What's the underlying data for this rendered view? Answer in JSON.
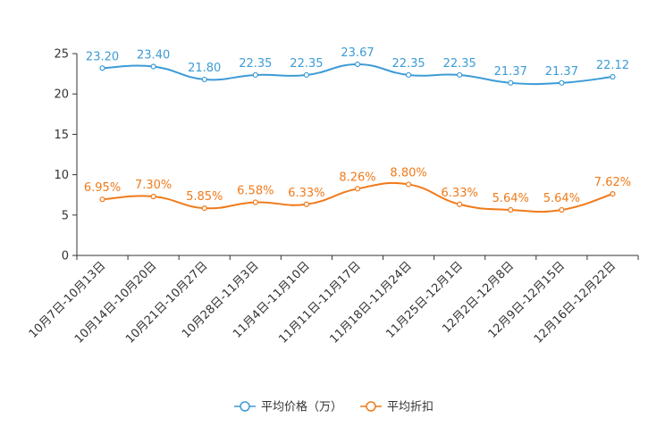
{
  "chart_data": {
    "type": "line",
    "title": "",
    "xlabel": "",
    "ylabel": "",
    "ylim": [
      0,
      25
    ],
    "yticks": [
      0,
      5,
      10,
      15,
      20,
      25
    ],
    "categories": [
      "10月7日-10月13日",
      "10月14日-10月20日",
      "10月21日-10月27日",
      "10月28日-11月3日",
      "11月4日-11月10日",
      "11月11日-11月17日",
      "11月18日-11月24日",
      "11月25日-12月1日",
      "12月2日-12月8日",
      "12月9日-12月15日",
      "12月16日-12月22日"
    ],
    "series": [
      {
        "name": "平均价格（万）",
        "color": "#3d9bd6",
        "values": [
          23.2,
          23.4,
          21.8,
          22.35,
          22.35,
          23.67,
          22.35,
          22.35,
          21.37,
          21.37,
          22.12
        ],
        "labels": [
          "23.20",
          "23.40",
          "21.80",
          "22.35",
          "22.35",
          "23.67",
          "22.35",
          "22.35",
          "21.37",
          "21.37",
          "22.12"
        ]
      },
      {
        "name": "平均折扣",
        "color": "#f07a1a",
        "values": [
          6.95,
          7.3,
          5.85,
          6.58,
          6.33,
          8.26,
          8.8,
          6.33,
          5.64,
          5.64,
          7.62
        ],
        "labels": [
          "6.95%",
          "7.30%",
          "5.85%",
          "6.58%",
          "6.33%",
          "8.26%",
          "8.80%",
          "6.33%",
          "5.64%",
          "5.64%",
          "7.62%"
        ]
      }
    ],
    "legend_position": "bottom"
  }
}
